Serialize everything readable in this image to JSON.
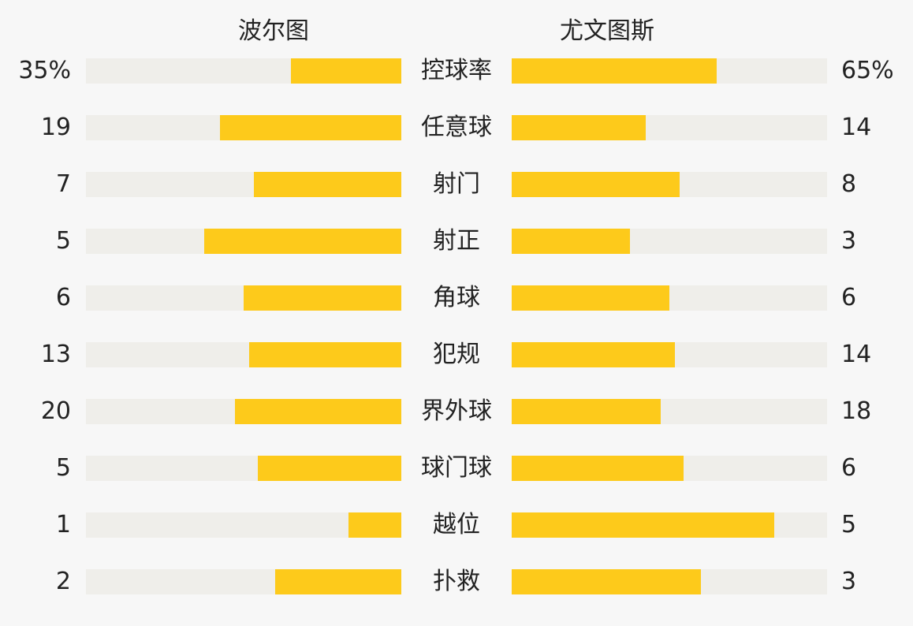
{
  "teams": {
    "home": "波尔图",
    "away": "尤文图斯"
  },
  "colors": {
    "bar": "#fdca1b",
    "track": "#efeeea",
    "background": "#f7f7f7"
  },
  "chart_data": {
    "type": "bar",
    "categories": [
      "控球率",
      "任意球",
      "射门",
      "射正",
      "角球",
      "犯规",
      "界外球",
      "球门球",
      "越位",
      "扑救"
    ],
    "series": [
      {
        "name": "波尔图",
        "values": [
          35,
          19,
          7,
          5,
          6,
          13,
          20,
          5,
          1,
          2
        ]
      },
      {
        "name": "尤文图斯",
        "values": [
          65,
          14,
          8,
          3,
          6,
          14,
          18,
          6,
          5,
          3
        ]
      }
    ],
    "value_labels": {
      "home": [
        "35%",
        "19",
        "7",
        "5",
        "6",
        "13",
        "20",
        "5",
        "1",
        "2"
      ],
      "away": [
        "65%",
        "14",
        "8",
        "3",
        "6",
        "14",
        "18",
        "6",
        "5",
        "3"
      ]
    }
  }
}
